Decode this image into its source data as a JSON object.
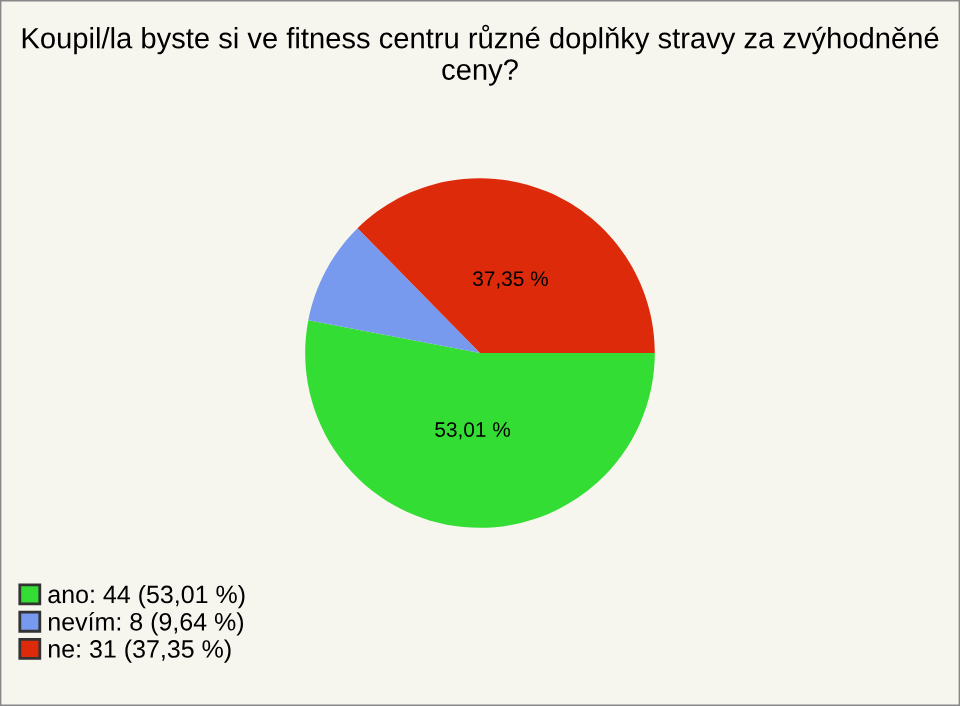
{
  "chart_data": {
    "type": "pie",
    "title": "Koupil/la byste si ve fitness centru různé doplňky stravy za zvýhodněné ceny?",
    "categories": [
      "ano: 44 (53,01 %)",
      "nevím: 8 (9,64 %)",
      "ne: 31 (37,35 %)"
    ],
    "values": [
      53.01,
      9.64,
      37.35
    ],
    "colors": [
      "#33dd33",
      "#7799ee",
      "#dd2a0a"
    ],
    "value_labels": [
      "53,01 %",
      null,
      "37,35 %"
    ],
    "legend": "bottom left"
  }
}
